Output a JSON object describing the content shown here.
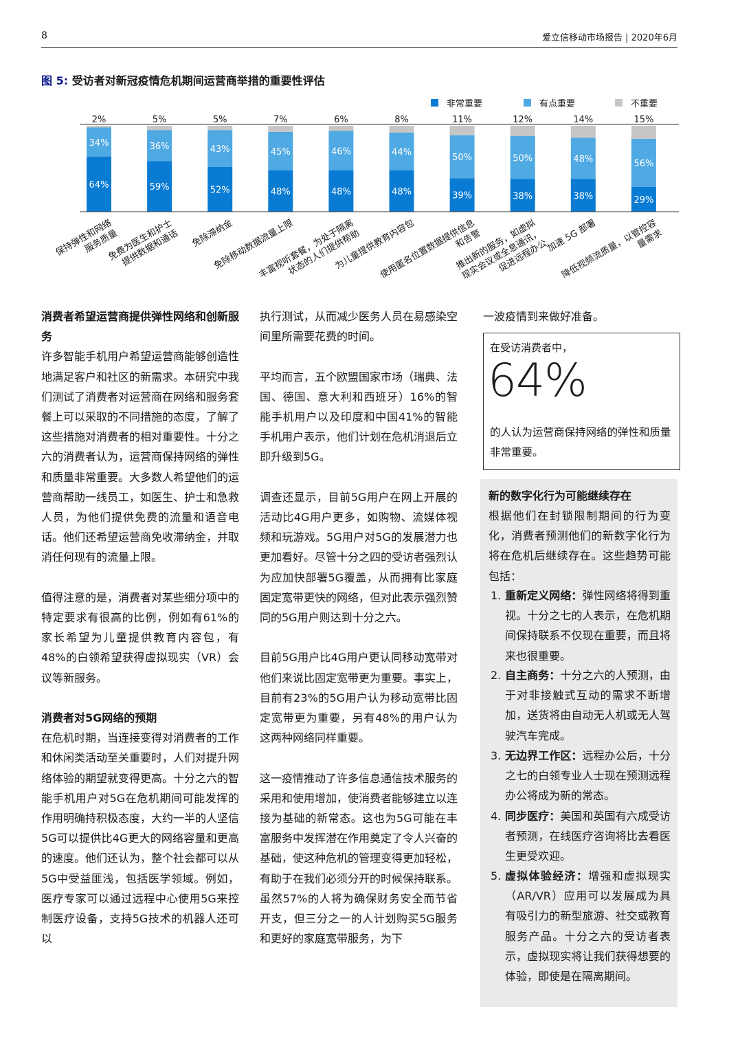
{
  "header": {
    "page_number": "8",
    "report_title": "爱立信移动市场报告 | 2020年6月"
  },
  "figure": {
    "label": "图 5:",
    "title": "受访者对新冠疫情危机期间运营商举措的重要性评估"
  },
  "chart_data": {
    "type": "bar",
    "stacked": true,
    "ylim": [
      0,
      100
    ],
    "grid": false,
    "legend_position": "top-right",
    "categories": [
      "保持弹性和网络服务质量",
      "免费为医生和护士提供数据和通话",
      "免除滞纳金",
      "免除移动数据流量上限",
      "丰富视听套餐，为处于隔离状态的人们提供帮助",
      "为儿童提供教育内容包",
      "使用匿名位置数据提供信息和告警",
      "推出新的服务，如虚拟现实会议或全息通讯，促进远程办公",
      "加速 5G 部署",
      "降低视频流质量，以管控容量需求"
    ],
    "category_label_lines": [
      [
        "保持弹性和网络",
        "服务质量"
      ],
      [
        "免费为医生和护士",
        "提供数据和通话"
      ],
      [
        "免除滞纳金"
      ],
      [
        "免除移动数据流量上限"
      ],
      [
        "丰富视听套餐，为处于隔离",
        "状态的人们提供帮助"
      ],
      [
        "为儿童提供教育内容包"
      ],
      [
        "使用匿名位置数据提供信息",
        "和告警"
      ],
      [
        "推出新的服务，如虚拟",
        "现实会议或全息通讯，",
        "促进远程办公"
      ],
      [
        "加速 5G 部署"
      ],
      [
        "降低视频流质量，以管控容",
        "量需求"
      ]
    ],
    "series": [
      {
        "name": "非常重要",
        "color": "#0a7bd3",
        "values": [
          64,
          59,
          52,
          48,
          48,
          48,
          39,
          38,
          38,
          29
        ]
      },
      {
        "name": "有点重要",
        "color": "#4fa9e3",
        "values": [
          34,
          36,
          43,
          45,
          46,
          44,
          50,
          50,
          48,
          56
        ]
      },
      {
        "name": "不重要",
        "color": "#c6c6c6",
        "values": [
          2,
          5,
          5,
          7,
          6,
          8,
          11,
          12,
          14,
          15
        ]
      }
    ],
    "value_suffix": "%"
  },
  "col1": {
    "h1": "消费者希望运营商提供弹性网络和创新服务",
    "p1": "许多智能手机用户希望运营商能够创造性地满足客户和社区的新需求。本研究中我们测试了消费者对运营商在网络和服务套餐上可以采取的不同措施的态度，了解了这些措施对消费者的相对重要性。十分之六的消费者认为，运营商保持网络的弹性和质量非常重要。大多数人希望他们的运营商帮助一线员工，如医生、护士和急救人员，为他们提供免费的流量和语音电话。他们还希望运营商免收滞纳金，并取消任何现有的流量上限。",
    "p2": "值得注意的是，消费者对某些细分项中的特定要求有很高的比例，例如有61%的家长希望为儿童提供教育内容包，有48%的白领希望获得虚拟现实（VR）会议等新服务。",
    "h2": "消费者对5G网络的预期",
    "p3": "在危机时期，当连接变得对消费者的工作和休闲类活动至关重要时，人们对提升网络体验的期望就变得更高。十分之六的智能手机用户对5G在危机期间可能发挥的作用明确持积极态度，大约一半的人坚信5G可以提供比4G更大的网络容量和更高的速度。他们还认为，整个社会都可以从5G中受益匪浅，包括医学领域。例如，医疗专家可以通过远程中心使用5G来控制医疗设备，支持5G技术的机器人还可以"
  },
  "col2": {
    "p1": "执行测试，从而减少医务人员在易感染空间里所需要花费的时间。",
    "p2": "平均而言，五个欧盟国家市场（瑞典、法国、德国、意大利和西班牙）16%的智能手机用户以及印度和中国41%的智能手机用户表示，他们计划在危机消退后立即升级到5G。",
    "p3": "调查还显示，目前5G用户在网上开展的活动比4G用户更多，如购物、流媒体视频和玩游戏。5G用户对5G的发展潜力也更加看好。尽管十分之四的受访者强烈认为应加快部署5G覆盖，从而拥有比家庭固定宽带更快的网络，但对此表示强烈赞同的5G用户则达到十分之六。",
    "p4": "目前5G用户比4G用户更认同移动宽带对他们来说比固定宽带更为重要。事实上，目前有23%的5G用户认为移动宽带比固定宽带更为重要，另有48%的用户认为这两种网络同样重要。",
    "p5": "这一疫情推动了许多信息通信技术服务的采用和使用增加，使消费者能够建立以连接为基础的新常态。这也为5G可能在丰富服务中发挥潜在作用奠定了令人兴奋的基础，使这种危机的管理变得更加轻松，有助于在我们必须分开的时候保持联系。虽然57%的人将为确保财务安全而节省开支，但三分之一的人计划购买5G服务和更好的家庭宽带服务，为下"
  },
  "col3": {
    "p1": "一波疫情到来做好准备。"
  },
  "callout": {
    "intro": "在受访消费者中，",
    "value": "64%",
    "desc": "的人认为运营商保持网络的弹性和质量非常重要。"
  },
  "trends": {
    "title": "新的数字化行为可能继续存在",
    "intro": "根据他们在封锁限制期间的行为变化，消费者预测他们的新数字化行为将在危机后继续存在。这些趋势可能包括：",
    "items": [
      {
        "num": "1.",
        "bold": "重新定义网络：",
        "text": "弹性网络将得到重视。十分之七的人表示，在危机期间保持联系不仅现在重要，而且将来也很重要。"
      },
      {
        "num": "2.",
        "bold": "自主商务：",
        "text": "十分之六的人预测，由于对非接触式互动的需求不断增加，送货将由自动无人机或无人驾驶汽车完成。"
      },
      {
        "num": "3.",
        "bold": "无边界工作区：",
        "text": "远程办公后，十分之七的白领专业人士现在预测远程办公将成为新的常态。"
      },
      {
        "num": "4.",
        "bold": "同步医疗：",
        "text": "美国和英国有六成受访者预测，在线医疗咨询将比去看医生更受欢迎。"
      },
      {
        "num": "5.",
        "bold": "虚拟体验经济：",
        "text": "增强和虚拟现实（AR/VR）应用可以发展成为具有吸引力的新型旅游、社交或教育服务产品。十分之六的受访者表示，虚拟现实将让我们获得想要的体验，即使是在隔离期间。"
      }
    ]
  }
}
